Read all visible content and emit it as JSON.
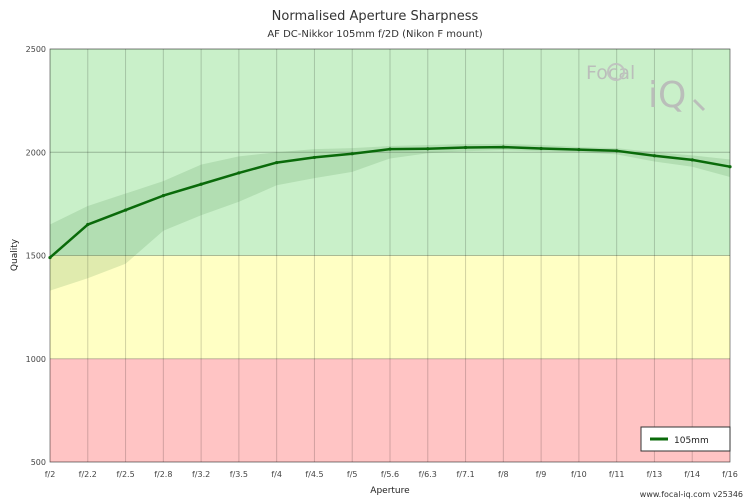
{
  "chart_data": {
    "type": "line",
    "title": "Normalised Aperture Sharpness",
    "subtitle": "AF DC-Nikkor 105mm f/2D (Nikon F mount)",
    "xlabel": "Aperture",
    "ylabel": "Quality",
    "categories": [
      "f/2",
      "f/2.2",
      "f/2.5",
      "f/2.8",
      "f/3.2",
      "f/3.5",
      "f/4",
      "f/4.5",
      "f/5",
      "f/5.6",
      "f/6.3",
      "f/7.1",
      "f/8",
      "f/9",
      "f/10",
      "f/11",
      "f/13",
      "f/14",
      "f/16"
    ],
    "ylim": [
      500,
      2500
    ],
    "yticks": [
      500,
      1000,
      1500,
      2000,
      2500
    ],
    "grid": true,
    "bands": [
      {
        "from": 500,
        "to": 1000,
        "color": "#ffc4c4"
      },
      {
        "from": 1000,
        "to": 1500,
        "color": "#ffffc4"
      },
      {
        "from": 1500,
        "to": 2500,
        "color": "#c9f0c9"
      }
    ],
    "series": [
      {
        "name": "105mm",
        "color": "#0a6a0a",
        "values": [
          1490,
          1650,
          1720,
          1790,
          1845,
          1900,
          1950,
          1975,
          1993,
          2015,
          2017,
          2023,
          2025,
          2018,
          2013,
          2007,
          1983,
          1963,
          1930
        ],
        "upper": [
          1650,
          1740,
          1800,
          1860,
          1940,
          1980,
          2000,
          2015,
          2020,
          2030,
          2035,
          2040,
          2040,
          2035,
          2025,
          2020,
          2000,
          1985,
          1965
        ],
        "lower": [
          1330,
          1390,
          1460,
          1620,
          1695,
          1760,
          1840,
          1875,
          1905,
          1970,
          1995,
          2005,
          2010,
          2005,
          2000,
          1990,
          1955,
          1930,
          1880
        ]
      }
    ],
    "legend_position": "bottom-right"
  },
  "logo": {
    "text_top": "Focal",
    "text_bottom": "iQ"
  },
  "footer": {
    "text": "www.focal-iq.com  v25346"
  }
}
